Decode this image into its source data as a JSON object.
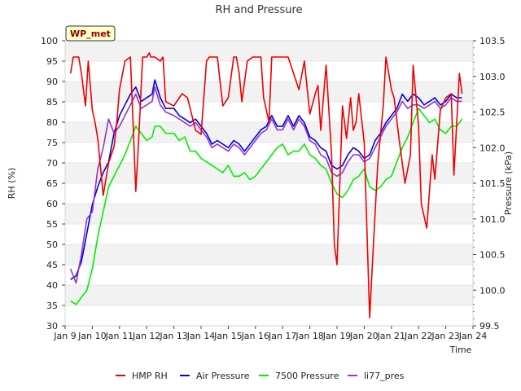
{
  "chart_data": {
    "type": "line",
    "title": "RH and Pressure",
    "xlabel": "Time",
    "ylabel_left": "RH (%)",
    "ylabel_right": "Pressure (kPa)",
    "badge": "WP_met",
    "xlim": [
      0,
      15
    ],
    "ylim_left": [
      30,
      100
    ],
    "ylim_right": [
      99.5,
      103.5
    ],
    "x_ticks": [
      0,
      1,
      2,
      3,
      4,
      5,
      6,
      7,
      8,
      9,
      10,
      11,
      12,
      13,
      14,
      15
    ],
    "x_tick_labels": [
      "Jan 9",
      "Jan 10",
      "Jan 11",
      "Jan 12",
      "Jan 13",
      "Jan 14",
      "Jan 15",
      "Jan 16",
      "Jan 17",
      "Jan 18",
      "Jan 19",
      "Jan 20",
      "Jan 21",
      "Jan 22",
      "Jan 23",
      "Jan 24"
    ],
    "y_left_ticks": [
      30,
      35,
      40,
      45,
      50,
      55,
      60,
      65,
      70,
      75,
      80,
      85,
      90,
      95,
      100
    ],
    "y_right_ticks": [
      99.5,
      100.0,
      100.5,
      101.0,
      101.5,
      102.0,
      102.5,
      103.0,
      103.5
    ],
    "grid": "horizontal bands",
    "legend_position": "bottom",
    "series": [
      {
        "name": "HMP RH",
        "color": "#ee0000",
        "axis": "left",
        "x": [
          0.2,
          0.3,
          0.5,
          0.6,
          0.75,
          0.85,
          1.0,
          1.1,
          1.2,
          1.4,
          1.6,
          1.8,
          1.9,
          2.0,
          2.2,
          2.4,
          2.6,
          2.7,
          2.85,
          3.0,
          3.1,
          3.15,
          3.3,
          3.5,
          3.6,
          3.7,
          4.0,
          4.3,
          4.5,
          4.8,
          5.0,
          5.2,
          5.3,
          5.5,
          5.6,
          5.8,
          6.0,
          6.2,
          6.3,
          6.4,
          6.5,
          6.7,
          6.9,
          7.0,
          7.2,
          7.3,
          7.5,
          7.6,
          7.8,
          8.0,
          8.2,
          8.4,
          8.6,
          8.8,
          9.0,
          9.2,
          9.3,
          9.4,
          9.6,
          9.8,
          9.9,
          10.0,
          10.2,
          10.35,
          10.5,
          10.6,
          10.7,
          10.8,
          11.0,
          11.2,
          11.3,
          11.5,
          11.7,
          11.8,
          11.9,
          12.0,
          12.1,
          12.3,
          12.5,
          12.7,
          12.8,
          13.0,
          13.1,
          13.3,
          13.5,
          13.6,
          13.8,
          14.0,
          14.2,
          14.3,
          14.5,
          14.6
        ],
        "values": [
          92,
          96,
          96,
          92,
          84,
          95,
          83,
          80,
          76,
          62,
          70,
          74,
          80,
          88,
          95,
          96,
          63,
          75,
          96,
          96,
          97,
          96,
          96,
          95,
          96,
          85,
          84,
          87,
          86,
          78,
          77,
          95,
          96,
          96,
          96,
          84,
          86,
          96,
          96,
          92,
          85,
          95,
          96,
          96,
          96,
          86,
          80,
          96,
          96,
          96,
          96,
          92,
          88,
          95,
          82,
          87,
          89,
          78,
          94,
          72,
          50,
          45,
          84,
          76,
          86,
          78,
          80,
          87,
          75,
          32,
          45,
          70,
          84,
          96,
          92,
          88,
          86,
          75,
          65,
          72,
          94,
          79,
          60,
          54,
          72,
          66,
          83,
          86,
          87,
          67,
          92,
          87
        ]
      },
      {
        "name": "Air Pressure",
        "color": "#0000dd",
        "axis": "right",
        "x": [
          0.2,
          0.4,
          0.6,
          0.8,
          1.0,
          1.2,
          1.4,
          1.6,
          1.8,
          2.0,
          2.2,
          2.4,
          2.6,
          2.8,
          3.0,
          3.2,
          3.3,
          3.5,
          3.7,
          4.0,
          4.2,
          4.4,
          4.6,
          4.8,
          5.0,
          5.2,
          5.4,
          5.6,
          5.8,
          6.0,
          6.2,
          6.4,
          6.6,
          6.8,
          7.0,
          7.2,
          7.4,
          7.6,
          7.8,
          8.0,
          8.2,
          8.4,
          8.6,
          8.8,
          9.0,
          9.2,
          9.4,
          9.6,
          9.8,
          10.0,
          10.2,
          10.4,
          10.6,
          10.8,
          11.0,
          11.2,
          11.4,
          11.6,
          11.8,
          12.0,
          12.2,
          12.4,
          12.6,
          12.8,
          13.0,
          13.2,
          13.4,
          13.6,
          13.8,
          14.0,
          14.2,
          14.4,
          14.6
        ],
        "values": [
          100.15,
          100.2,
          100.4,
          100.8,
          101.2,
          101.45,
          101.65,
          101.8,
          102.2,
          102.45,
          102.6,
          102.75,
          102.85,
          102.65,
          102.7,
          102.75,
          102.95,
          102.7,
          102.55,
          102.55,
          102.45,
          102.4,
          102.35,
          102.4,
          102.3,
          102.2,
          102.05,
          102.1,
          102.05,
          102.0,
          102.1,
          102.05,
          101.95,
          102.05,
          102.15,
          102.25,
          102.3,
          102.45,
          102.3,
          102.3,
          102.45,
          102.3,
          102.45,
          102.35,
          102.15,
          102.1,
          102.0,
          101.95,
          101.75,
          101.7,
          101.75,
          101.9,
          102.0,
          101.95,
          101.85,
          101.9,
          102.1,
          102.2,
          102.35,
          102.45,
          102.55,
          102.75,
          102.65,
          102.75,
          102.7,
          102.6,
          102.65,
          102.7,
          102.6,
          102.65,
          102.75,
          102.7,
          102.7
        ]
      },
      {
        "name": "7500 Pressure",
        "color": "#00ee00",
        "axis": "right",
        "x": [
          0.2,
          0.4,
          0.6,
          0.8,
          1.0,
          1.2,
          1.4,
          1.6,
          1.8,
          2.0,
          2.2,
          2.4,
          2.6,
          2.8,
          3.0,
          3.2,
          3.3,
          3.5,
          3.7,
          4.0,
          4.2,
          4.4,
          4.6,
          4.8,
          5.0,
          5.2,
          5.4,
          5.6,
          5.8,
          6.0,
          6.2,
          6.4,
          6.6,
          6.8,
          7.0,
          7.2,
          7.4,
          7.6,
          7.8,
          8.0,
          8.2,
          8.4,
          8.6,
          8.8,
          9.0,
          9.2,
          9.4,
          9.6,
          9.8,
          10.0,
          10.2,
          10.4,
          10.6,
          10.8,
          11.0,
          11.2,
          11.4,
          11.6,
          11.8,
          12.0,
          12.2,
          12.4,
          12.6,
          12.8,
          13.0,
          13.2,
          13.4,
          13.6,
          13.8,
          14.0,
          14.2,
          14.4,
          14.6
        ],
        "values": [
          99.85,
          99.8,
          99.9,
          100.0,
          100.3,
          100.75,
          101.1,
          101.45,
          101.6,
          101.75,
          101.9,
          102.1,
          102.3,
          102.2,
          102.1,
          102.15,
          102.3,
          102.3,
          102.2,
          102.2,
          102.1,
          102.15,
          101.95,
          101.95,
          101.85,
          101.8,
          101.75,
          101.7,
          101.65,
          101.75,
          101.6,
          101.6,
          101.65,
          101.55,
          101.6,
          101.7,
          101.8,
          101.9,
          102.0,
          102.05,
          101.9,
          101.95,
          101.95,
          102.05,
          101.9,
          101.85,
          101.75,
          101.7,
          101.5,
          101.35,
          101.3,
          101.4,
          101.55,
          101.6,
          101.7,
          101.45,
          101.4,
          101.45,
          101.55,
          101.6,
          101.8,
          102.0,
          102.15,
          102.35,
          102.55,
          102.45,
          102.35,
          102.4,
          102.25,
          102.2,
          102.3,
          102.3,
          102.4
        ]
      },
      {
        "name": "li77_pres",
        "color": "#9933cc",
        "axis": "right",
        "x": [
          0.2,
          0.4,
          0.6,
          0.8,
          1.0,
          1.2,
          1.4,
          1.6,
          1.8,
          2.0,
          2.2,
          2.4,
          2.6,
          2.8,
          3.0,
          3.2,
          3.3,
          3.5,
          3.7,
          4.0,
          4.2,
          4.4,
          4.6,
          4.8,
          5.0,
          5.2,
          5.4,
          5.6,
          5.8,
          6.0,
          6.2,
          6.4,
          6.6,
          6.8,
          7.0,
          7.2,
          7.4,
          7.6,
          7.8,
          8.0,
          8.2,
          8.4,
          8.6,
          8.8,
          9.0,
          9.2,
          9.4,
          9.6,
          9.8,
          10.0,
          10.2,
          10.4,
          10.6,
          10.8,
          11.0,
          11.2,
          11.4,
          11.6,
          11.8,
          12.0,
          12.2,
          12.4,
          12.6,
          12.8,
          13.0,
          13.2,
          13.4,
          13.6,
          13.8,
          14.0,
          14.2,
          14.4,
          14.6
        ],
        "values": [
          100.3,
          100.1,
          100.5,
          101.0,
          101.1,
          101.7,
          102.0,
          102.4,
          102.2,
          102.3,
          102.45,
          102.6,
          102.75,
          102.55,
          102.6,
          102.65,
          102.85,
          102.6,
          102.5,
          102.45,
          102.4,
          102.35,
          102.3,
          102.35,
          102.25,
          102.15,
          102.0,
          102.05,
          102.0,
          101.95,
          102.05,
          102.0,
          101.9,
          102.0,
          102.1,
          102.2,
          102.25,
          102.4,
          102.25,
          102.25,
          102.4,
          102.25,
          102.4,
          102.3,
          102.1,
          102.05,
          101.9,
          101.85,
          101.65,
          101.6,
          101.65,
          101.8,
          101.9,
          101.9,
          101.8,
          101.85,
          102.0,
          102.15,
          102.3,
          102.4,
          102.5,
          102.65,
          102.55,
          102.6,
          102.6,
          102.55,
          102.6,
          102.65,
          102.55,
          102.6,
          102.7,
          102.65,
          102.65
        ]
      }
    ]
  }
}
